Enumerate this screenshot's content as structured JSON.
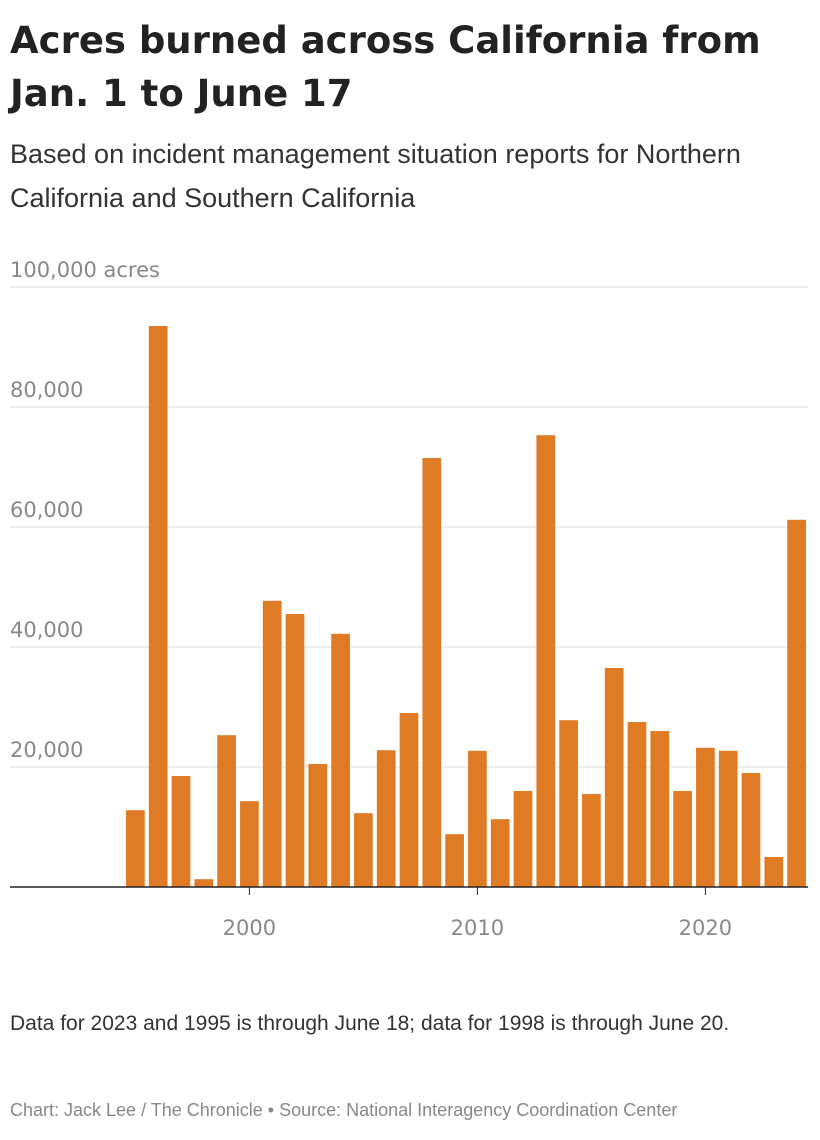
{
  "chart_data": {
    "type": "bar",
    "title": "Acres burned across California from Jan. 1 to June 17",
    "subtitle": "Based on incident management situation reports for Northern California and Southern California",
    "note": "Data for 2023 and 1995 is through June 18; data for 1998 is through June 20.",
    "credit": "Chart: Jack Lee / The Chronicle • Source: National Interagency Coordination Center",
    "x": [
      1995,
      1996,
      1997,
      1998,
      1999,
      2000,
      2001,
      2002,
      2003,
      2004,
      2005,
      2006,
      2007,
      2008,
      2009,
      2010,
      2011,
      2012,
      2013,
      2014,
      2015,
      2016,
      2017,
      2018,
      2019,
      2020,
      2021,
      2022,
      2023,
      2024
    ],
    "values": [
      12800,
      93500,
      18500,
      1300,
      25300,
      14300,
      47700,
      45500,
      20500,
      42200,
      12300,
      22800,
      29000,
      71500,
      8800,
      22700,
      11300,
      16000,
      75300,
      27800,
      15500,
      36500,
      27500,
      26000,
      16000,
      23200,
      22700,
      19000,
      5000,
      61200
    ],
    "color": "#e07b25",
    "xlim": [
      1989.5,
      2024.5
    ],
    "xticks": [
      2000,
      2010,
      2020
    ],
    "ylim": [
      0,
      100000
    ],
    "yticks": [
      {
        "value": 20000,
        "label": "20,000"
      },
      {
        "value": 40000,
        "label": "40,000"
      },
      {
        "value": 60000,
        "label": "60,000"
      },
      {
        "value": 80000,
        "label": "80,000"
      },
      {
        "value": 100000,
        "label": "100,000 acres"
      }
    ],
    "grid": true
  }
}
